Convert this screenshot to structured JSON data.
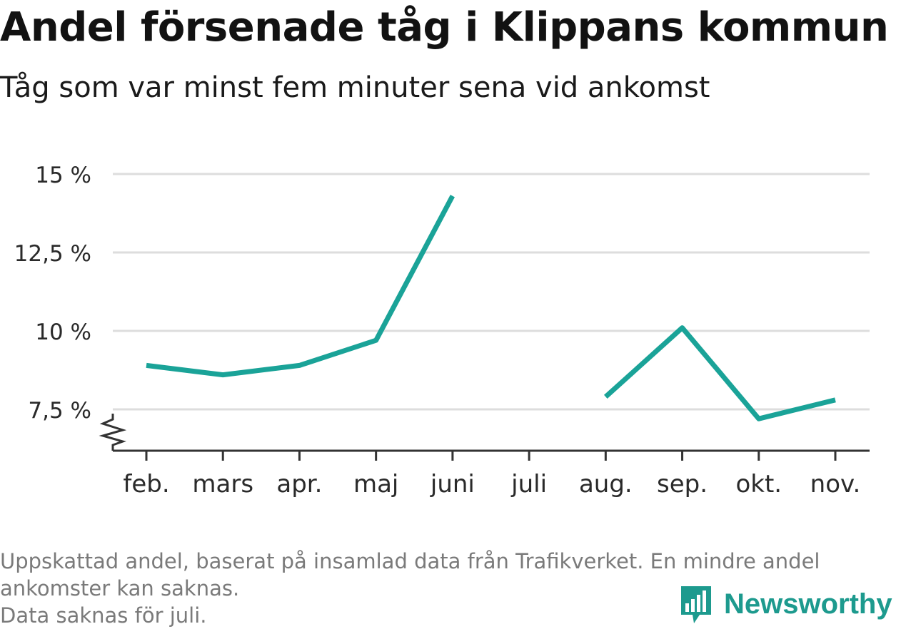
{
  "title": "Andel försenade tåg i Klippans kommun",
  "subtitle": "Tåg som var minst fem minuter sena vid ankomst",
  "footnote": {
    "line1": "Uppskattad andel, baserat på insamlad data från Trafikverket. En mindre andel",
    "line2": "ankomster kan saknas.",
    "line3": "Data saknas för juli."
  },
  "brand": {
    "name": "Newsworthy",
    "icon": "newsworthy-logo-icon",
    "color": "#1d9a8e"
  },
  "chart_data": {
    "type": "line",
    "categories": [
      "feb.",
      "mars",
      "apr.",
      "maj",
      "juni",
      "juli",
      "aug.",
      "sep.",
      "okt.",
      "nov."
    ],
    "series": [
      {
        "values": [
          8.9,
          8.6,
          8.9,
          9.7,
          14.3,
          null,
          7.9,
          10.1,
          7.2,
          7.8
        ],
        "color": "#1aa398"
      }
    ],
    "yticks": [
      7.5,
      10,
      12.5,
      15
    ],
    "ytick_labels": [
      "7,5 %",
      "10 %",
      "12,5 %",
      "15 %"
    ],
    "ylim": [
      6.2,
      15
    ],
    "grid": true,
    "axis_break": true
  }
}
